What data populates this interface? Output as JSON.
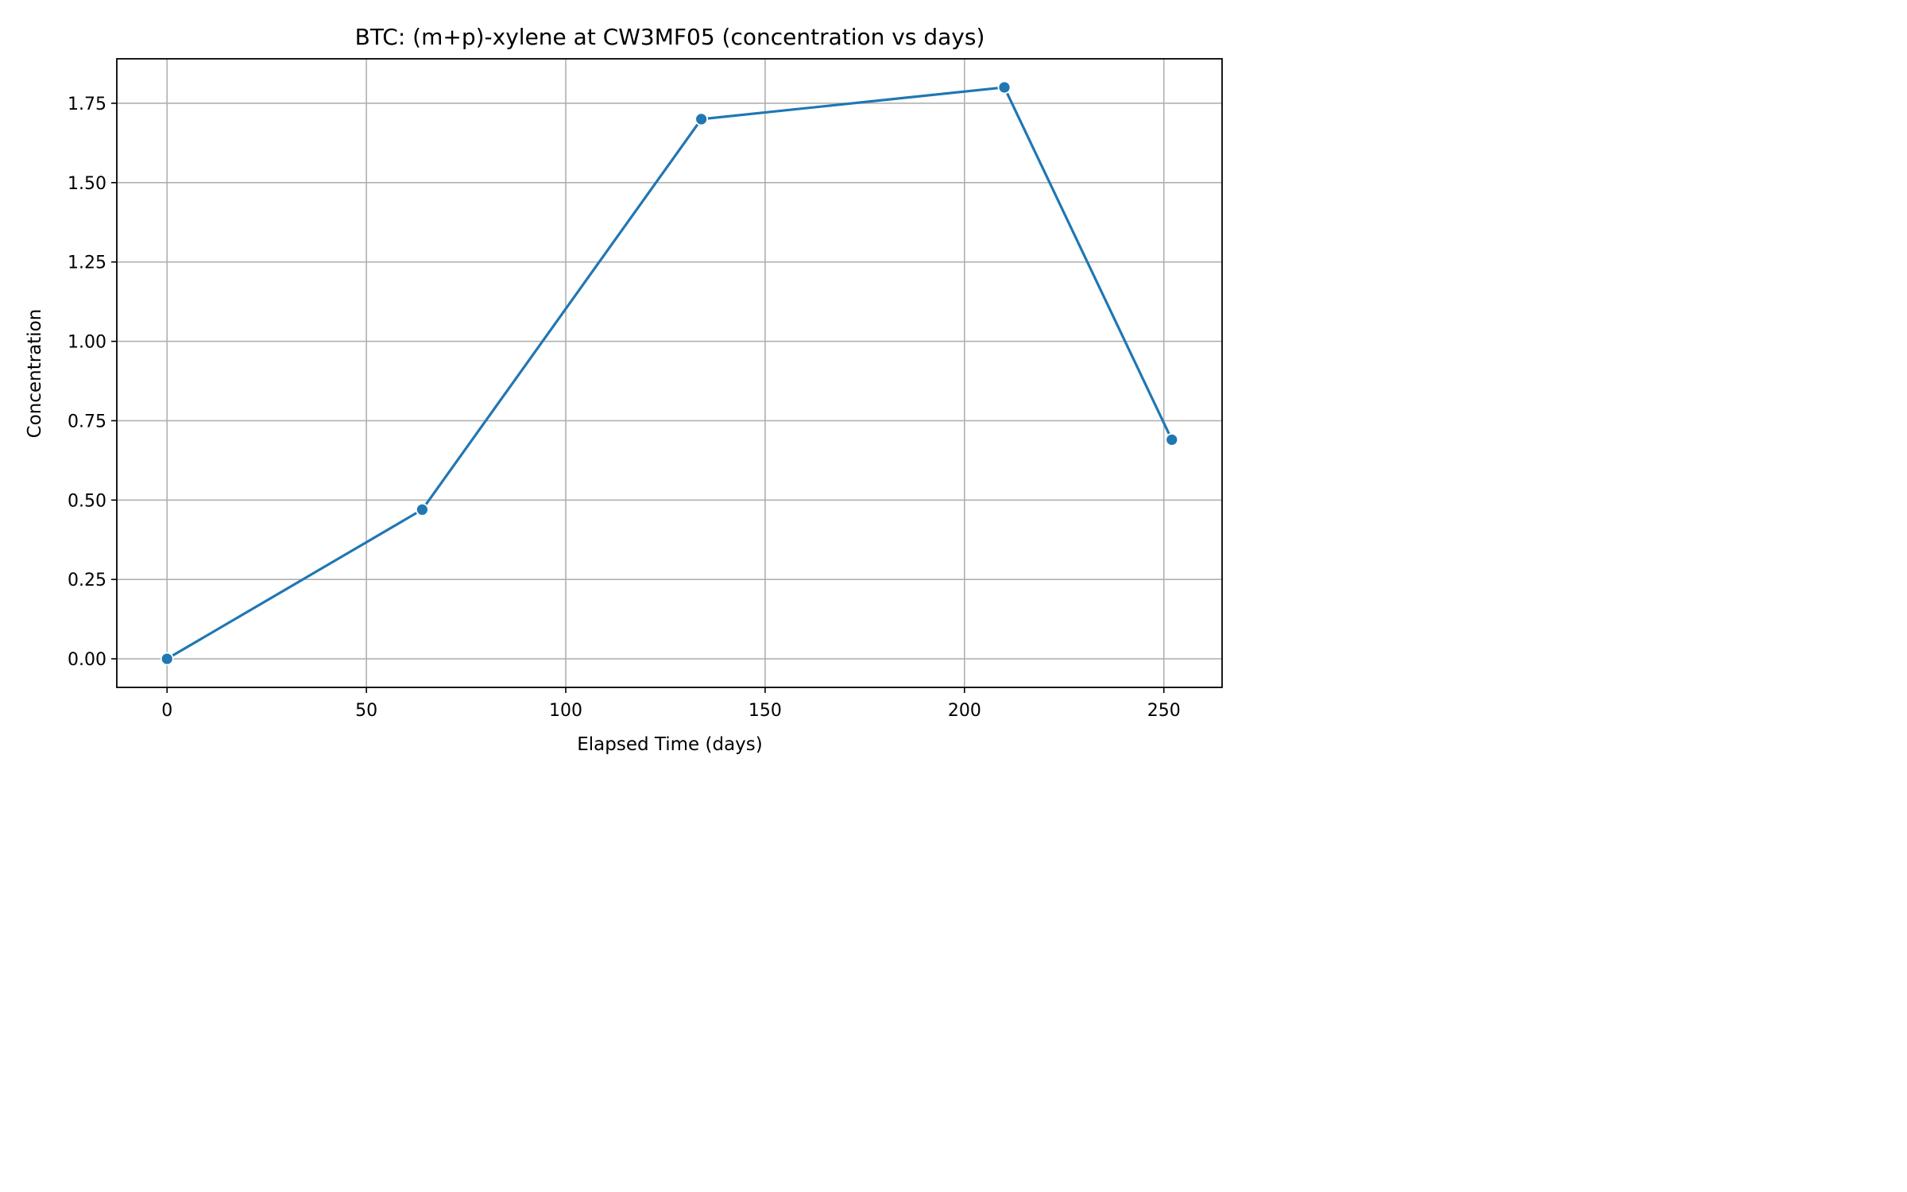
{
  "chart_data": {
    "type": "line",
    "title": "BTC: (m+p)-xylene at CW3MF05 (concentration vs days)",
    "xlabel": "Elapsed Time (days)",
    "ylabel": "Concentration",
    "xlim": [
      -12.6,
      264.6
    ],
    "ylim": [
      -0.09,
      1.89
    ],
    "xticks": [
      0,
      50,
      100,
      150,
      200,
      250
    ],
    "xtick_labels": [
      "0",
      "50",
      "100",
      "150",
      "200",
      "250"
    ],
    "yticks": [
      0.0,
      0.25,
      0.5,
      0.75,
      1.0,
      1.25,
      1.5,
      1.75
    ],
    "ytick_labels": [
      "0.00",
      "0.25",
      "0.50",
      "0.75",
      "1.00",
      "1.25",
      "1.50",
      "1.75"
    ],
    "grid": true,
    "series": [
      {
        "x": [
          0,
          64,
          134,
          210,
          252
        ],
        "y": [
          0.0,
          0.47,
          1.7,
          1.8,
          0.69
        ],
        "color": "#1f77b4",
        "marker": "circle"
      }
    ]
  }
}
